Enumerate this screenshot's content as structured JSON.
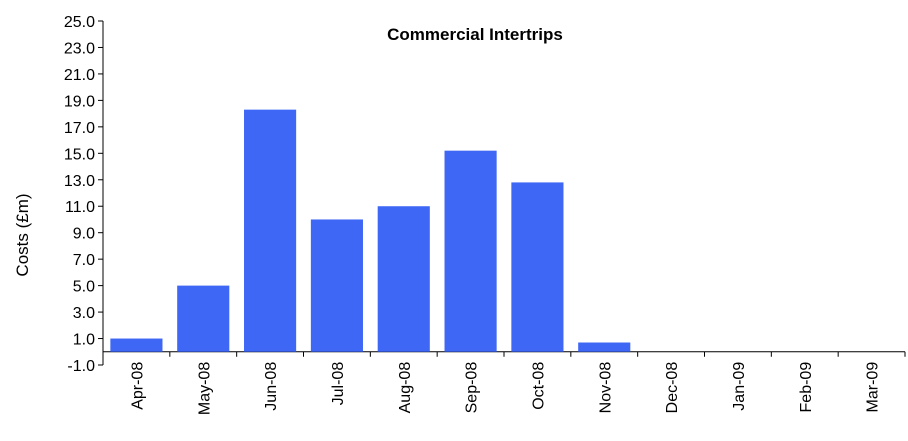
{
  "chart_data": {
    "type": "bar",
    "title": "Commercial Intertrips",
    "xlabel": "",
    "ylabel": "Costs (£m)",
    "ylim": [
      -1.0,
      25.0
    ],
    "yticks": [
      "-1.0",
      "1.0",
      "3.0",
      "5.0",
      "7.0",
      "9.0",
      "11.0",
      "13.0",
      "15.0",
      "17.0",
      "19.0",
      "21.0",
      "23.0",
      "25.0"
    ],
    "categories": [
      "Apr-08",
      "May-08",
      "Jun-08",
      "Jul-08",
      "Aug-08",
      "Sep-08",
      "Oct-08",
      "Nov-08",
      "Dec-08",
      "Jan-09",
      "Feb-09",
      "Mar-09"
    ],
    "values": [
      1.0,
      5.0,
      18.3,
      10.0,
      11.0,
      15.2,
      12.8,
      0.7,
      0.0,
      0.0,
      0.0,
      0.0
    ],
    "grid": false,
    "legend": "none",
    "bar_color": "#3e67f5"
  }
}
